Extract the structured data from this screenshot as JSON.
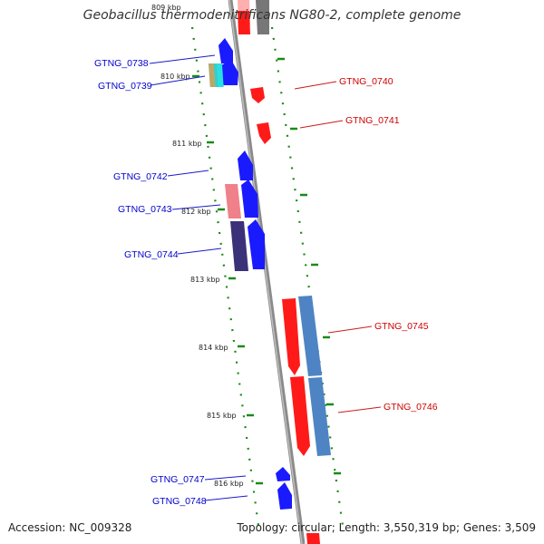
{
  "title": "Geobacillus thermodenitrificans NG80-2, complete genome",
  "footer": {
    "accession": "Accession: NC_009328",
    "summary": "Topology: circular; Length: 3,550,319 bp; Genes: 3,509"
  },
  "colors": {
    "forward_strand": "#0000ff",
    "reverse_strand": "#ff0000",
    "label_forward": "#0000cc",
    "label_reverse": "#cc0000",
    "backbone": "#888888",
    "tick": "#1a8a1a"
  },
  "scale_ticks": [
    "809 kbp",
    "810 kbp",
    "811 kbp",
    "812 kbp",
    "813 kbp",
    "814 kbp",
    "815 kbp",
    "816 kbp"
  ],
  "genes_left": [
    {
      "name": "GTNG_0738"
    },
    {
      "name": "GTNG_0739"
    },
    {
      "name": "GTNG_0742"
    },
    {
      "name": "GTNG_0743"
    },
    {
      "name": "GTNG_0744"
    },
    {
      "name": "GTNG_0747"
    },
    {
      "name": "GTNG_0748"
    }
  ],
  "genes_right": [
    {
      "name": "GTNG_0740"
    },
    {
      "name": "GTNG_0741"
    },
    {
      "name": "GTNG_0745"
    },
    {
      "name": "GTNG_0746"
    }
  ]
}
